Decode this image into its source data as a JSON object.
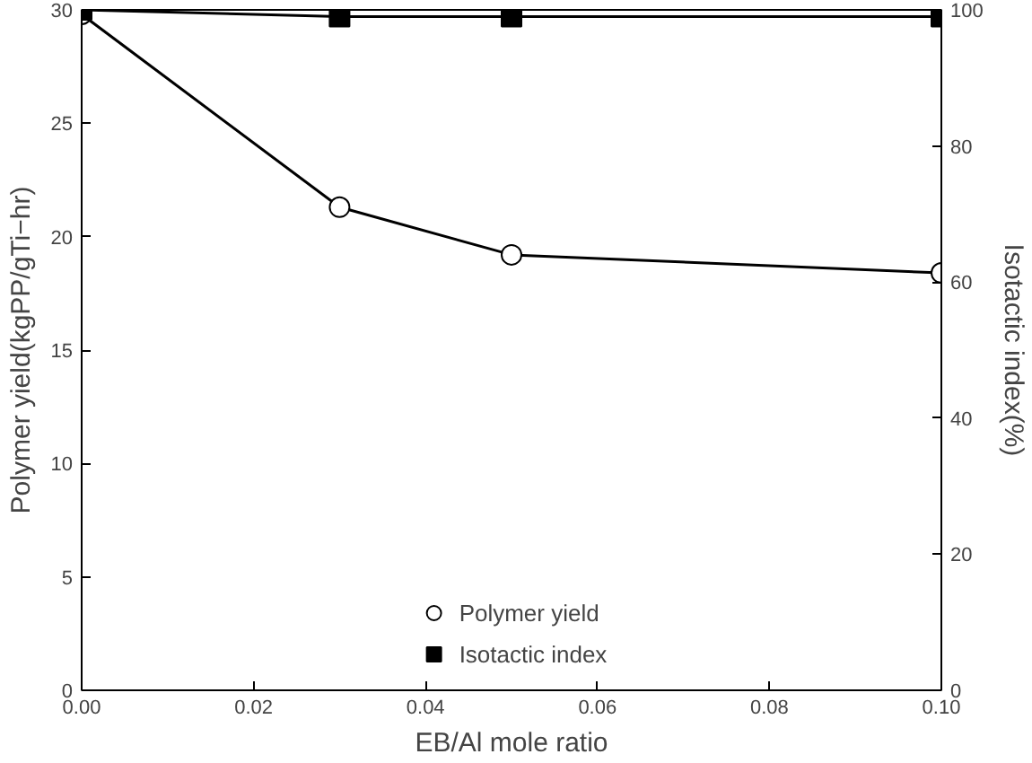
{
  "chart_data": {
    "type": "line",
    "xlabel": "EB/Al mole ratio",
    "ylabel": "Polymer yield(kgPP/gTi−hr)",
    "y2label": "Isotactic index(%)",
    "x": [
      0.0,
      0.03,
      0.05,
      0.1
    ],
    "series": [
      {
        "name": "Polymer yield",
        "color": "#000000",
        "marker": "circle",
        "values": [
          29.8,
          21.3,
          19.2,
          18.4
        ]
      },
      {
        "name": "Isotactic index",
        "color": "#000000",
        "marker": "square",
        "axis": "y2",
        "values": [
          100,
          99,
          99,
          99
        ]
      }
    ],
    "xlim": [
      0,
      0.1
    ],
    "xticks": [
      {
        "value": 0,
        "label": "0.00"
      },
      0.02,
      0.04,
      0.06,
      0.08,
      {
        "value": 0.1,
        "label": "0.10"
      }
    ],
    "ylim": [
      0,
      30
    ],
    "yticks": [
      0,
      5,
      10,
      15,
      20,
      25,
      30
    ],
    "y2lim": [
      0,
      100
    ],
    "y2ticks": [
      0,
      20,
      40,
      60,
      80,
      100
    ],
    "legend": "bottom",
    "grid": false,
    "line_style": "solid"
  }
}
